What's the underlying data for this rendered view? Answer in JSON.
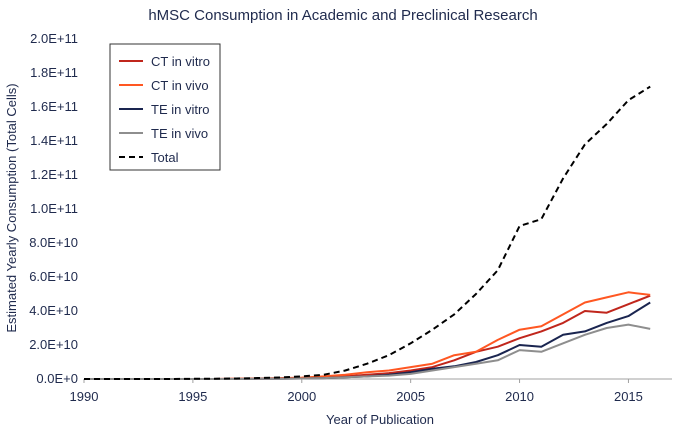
{
  "chart_data": {
    "type": "line",
    "title": "hMSC Consumption in Academic and Preclinical Research",
    "xlabel": "Year of Publication",
    "ylabel": "Estimated Yearly Consumption (Total Cells)",
    "xlim": [
      1990,
      2017
    ],
    "ylim": [
      0,
      200000000000
    ],
    "x_ticks": [
      1990,
      1995,
      2000,
      2005,
      2010,
      2015
    ],
    "x_tick_labels": [
      "1990",
      "1995",
      "2000",
      "2005",
      "2010",
      "2015"
    ],
    "y_ticks": [
      0,
      20000000000,
      40000000000,
      60000000000,
      80000000000,
      100000000000,
      120000000000,
      140000000000,
      160000000000,
      180000000000,
      200000000000
    ],
    "y_tick_labels": [
      "0.0E+0",
      "2.0E+10",
      "4.0E+10",
      "6.0E+10",
      "8.0E+10",
      "1.0E+11",
      "1.2E+11",
      "1.4E+11",
      "1.6E+11",
      "1.8E+11",
      "2.0E+11"
    ],
    "legend_position": "top-left",
    "x": [
      1990,
      1991,
      1992,
      1993,
      1994,
      1995,
      1996,
      1997,
      1998,
      1999,
      2000,
      2001,
      2002,
      2003,
      2004,
      2005,
      2006,
      2007,
      2008,
      2009,
      2010,
      2011,
      2012,
      2013,
      2014,
      2015,
      2016
    ],
    "series": [
      {
        "name": "CT in vitro",
        "color": "#c0261c",
        "dash": "solid",
        "values": [
          0,
          0,
          0,
          0,
          0,
          0,
          0,
          100000000,
          200000000,
          300000000,
          500000000,
          800000000,
          1500000000,
          2500000000,
          3500000000,
          5000000000,
          7000000000,
          11000000000,
          16000000000,
          19000000000,
          24000000000,
          28000000000,
          33000000000,
          40000000000,
          39000000000,
          44000000000,
          49000000000
        ]
      },
      {
        "name": "CT in vivo",
        "color": "#ff5722",
        "dash": "solid",
        "values": [
          0,
          0,
          0,
          0,
          0,
          0,
          0,
          100000000,
          300000000,
          500000000,
          800000000,
          1500000000,
          2500000000,
          4000000000,
          5000000000,
          7000000000,
          9000000000,
          14000000000,
          16000000000,
          23000000000,
          29000000000,
          31000000000,
          38000000000,
          45000000000,
          48000000000,
          51000000000,
          49500000000
        ]
      },
      {
        "name": "TE in vitro",
        "color": "#1a2550",
        "dash": "solid",
        "values": [
          0,
          0,
          0,
          0,
          0,
          0,
          0,
          0,
          100000000,
          200000000,
          300000000,
          500000000,
          1000000000,
          1500000000,
          2500000000,
          4000000000,
          6000000000,
          7500000000,
          10000000000,
          14000000000,
          20000000000,
          19000000000,
          26000000000,
          28000000000,
          33000000000,
          37000000000,
          45000000000
        ]
      },
      {
        "name": "TE in vivo",
        "color": "#8e8e8e",
        "dash": "solid",
        "values": [
          0,
          0,
          0,
          0,
          0,
          0,
          0,
          0,
          100000000,
          200000000,
          300000000,
          500000000,
          1000000000,
          1500000000,
          2000000000,
          3000000000,
          5000000000,
          7000000000,
          9000000000,
          11000000000,
          17000000000,
          16000000000,
          21000000000,
          26000000000,
          30000000000,
          32000000000,
          29500000000
        ]
      },
      {
        "name": "Total",
        "color": "#000000",
        "dash": "dashed",
        "values": [
          0,
          0,
          0,
          0,
          0,
          100000000,
          200000000,
          300000000,
          600000000,
          900000000,
          1500000000,
          2500000000,
          5000000000,
          9000000000,
          14000000000,
          21000000000,
          29000000000,
          38000000000,
          50000000000,
          64000000000,
          90000000000,
          94000000000,
          118000000000,
          138000000000,
          150000000000,
          164000000000,
          172000000000
        ]
      }
    ]
  }
}
